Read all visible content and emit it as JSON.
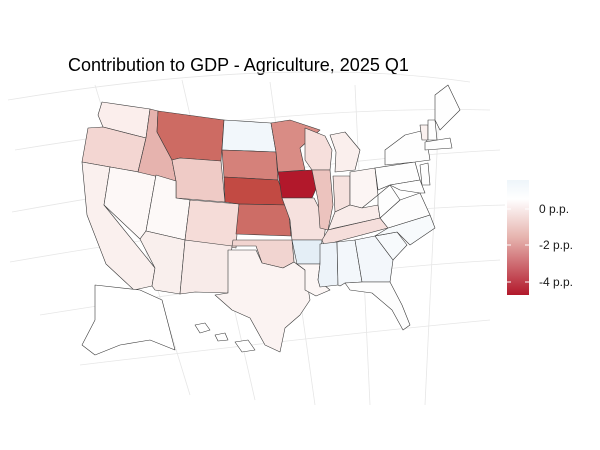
{
  "title": "Contribution to GDP - Agriculture, 2025 Q1",
  "legend": {
    "labels": [
      "0 p.p.",
      "-2 p.p.",
      "-4 p.p."
    ],
    "tick_values": [
      0,
      -2,
      -4
    ],
    "range": [
      -5,
      1
    ],
    "color_stops": [
      {
        "value": 1,
        "color": "#f0f6fb"
      },
      {
        "value": 0,
        "color": "#ffffff"
      },
      {
        "value": -2,
        "color": "#e6b3ae"
      },
      {
        "value": -5,
        "color": "#b2182b"
      }
    ]
  },
  "states": [
    {
      "id": "WA",
      "value": -0.5,
      "color": "#fbeeec"
    },
    {
      "id": "OR",
      "value": -1.2,
      "color": "#f3d6d2"
    },
    {
      "id": "CA",
      "value": -0.4,
      "color": "#faf0ee"
    },
    {
      "id": "NV",
      "value": -0.1,
      "color": "#fdf8f7"
    },
    {
      "id": "ID",
      "value": -2.2,
      "color": "#e6b3ae"
    },
    {
      "id": "MT",
      "value": -3.6,
      "color": "#cd6b63"
    },
    {
      "id": "WY",
      "value": -1.5,
      "color": "#efcbc6"
    },
    {
      "id": "UT",
      "value": -0.1,
      "color": "#fdf9f8"
    },
    {
      "id": "AZ",
      "value": -0.4,
      "color": "#f9efed"
    },
    {
      "id": "CO",
      "value": -1.0,
      "color": "#f5dcd8"
    },
    {
      "id": "NM",
      "value": -0.5,
      "color": "#f8ebe9"
    },
    {
      "id": "ND",
      "value": 0.3,
      "color": "#f2f7fb"
    },
    {
      "id": "SD",
      "value": -3.0,
      "color": "#d5817a"
    },
    {
      "id": "NE",
      "value": -4.3,
      "color": "#c24a43"
    },
    {
      "id": "KS",
      "value": -3.5,
      "color": "#cd6d66"
    },
    {
      "id": "OK",
      "value": -1.2,
      "color": "#f1d4d0"
    },
    {
      "id": "TX",
      "value": -0.3,
      "color": "#fbf3f2"
    },
    {
      "id": "MN",
      "value": -2.6,
      "color": "#d98c85"
    },
    {
      "id": "IA",
      "value": -5.0,
      "color": "#b2182b"
    },
    {
      "id": "MO",
      "value": -0.8,
      "color": "#f6e1de"
    },
    {
      "id": "AR",
      "value": 0.6,
      "color": "#e4eef6"
    },
    {
      "id": "LA",
      "value": -0.1,
      "color": "#fcf6f5"
    },
    {
      "id": "WI",
      "value": -0.9,
      "color": "#f6dfdc"
    },
    {
      "id": "IL",
      "value": -1.7,
      "color": "#ecc3be"
    },
    {
      "id": "MI",
      "value": -0.4,
      "color": "#faefed"
    },
    {
      "id": "IN",
      "value": -0.8,
      "color": "#f6e1de"
    },
    {
      "id": "OH",
      "value": -0.2,
      "color": "#fcf5f4"
    },
    {
      "id": "KY",
      "value": -0.5,
      "color": "#f9ecea"
    },
    {
      "id": "TN",
      "value": -0.9,
      "color": "#f5dedb"
    },
    {
      "id": "MS",
      "value": 0.3,
      "color": "#edf3f9"
    },
    {
      "id": "AL",
      "value": 0.2,
      "color": "#f3f7fb"
    },
    {
      "id": "GA",
      "value": 0.2,
      "color": "#f3f7fb"
    },
    {
      "id": "FL",
      "value": 0.0,
      "color": "#fdfdfd"
    },
    {
      "id": "SC",
      "value": 0.1,
      "color": "#f7fafc"
    },
    {
      "id": "NC",
      "value": 0.1,
      "color": "#f7fafc"
    },
    {
      "id": "VA",
      "value": 0.0,
      "color": "#fdfdfd"
    },
    {
      "id": "WV",
      "value": 0.0,
      "color": "#fefefe"
    },
    {
      "id": "PA",
      "value": 0.0,
      "color": "#fefefe"
    },
    {
      "id": "NY",
      "value": 0.0,
      "color": "#fefefe"
    },
    {
      "id": "VT",
      "value": -0.3,
      "color": "#fbf1ef"
    },
    {
      "id": "NH",
      "value": 0.0,
      "color": "#fefefe"
    },
    {
      "id": "ME",
      "value": 0.0,
      "color": "#fefefe"
    },
    {
      "id": "MA",
      "value": 0.0,
      "color": "#fefefe"
    },
    {
      "id": "NJ",
      "value": 0.0,
      "color": "#fefefe"
    },
    {
      "id": "MD",
      "value": 0.0,
      "color": "#fefefe"
    },
    {
      "id": "AK",
      "value": 0.0,
      "color": "#ffffff"
    },
    {
      "id": "HI",
      "value": 0.0,
      "color": "#ffffff"
    }
  ]
}
